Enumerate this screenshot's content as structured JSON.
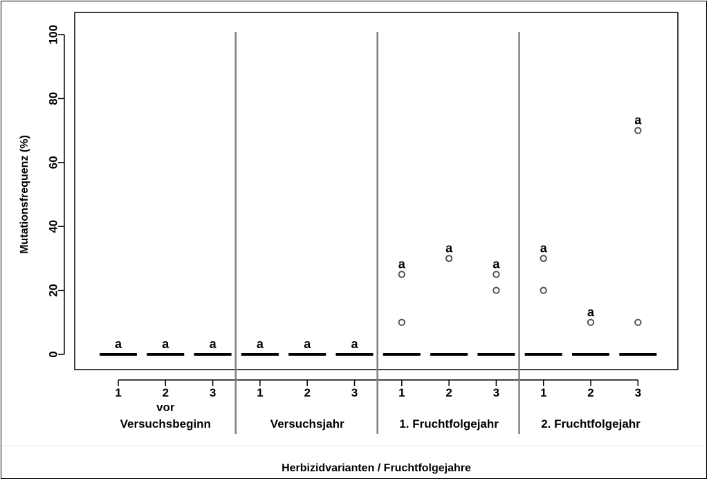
{
  "chart_data": {
    "type": "scatter",
    "ylabel": "Mutationsfrequenz (%)",
    "xlabel": "Herbizidvarianten / Fruchtfolgejahre",
    "ylim": [
      0,
      100
    ],
    "yticks": [
      "0",
      "20",
      "40",
      "60",
      "80",
      "100"
    ],
    "grid": false,
    "groups": [
      {
        "label_line1": "vor",
        "label_line2": "Versuchsbeginn",
        "variants": [
          {
            "label": "1",
            "median": 0,
            "outliers": [],
            "letter": "a"
          },
          {
            "label": "2",
            "median": 0,
            "outliers": [],
            "letter": "a"
          },
          {
            "label": "3",
            "median": 0,
            "outliers": [],
            "letter": "a"
          }
        ]
      },
      {
        "label_line1": "",
        "label_line2": "Versuchsjahr",
        "variants": [
          {
            "label": "1",
            "median": 0,
            "outliers": [],
            "letter": "a"
          },
          {
            "label": "2",
            "median": 0,
            "outliers": [],
            "letter": "a"
          },
          {
            "label": "3",
            "median": 0,
            "outliers": [],
            "letter": "a"
          }
        ]
      },
      {
        "label_line1": "",
        "label_line2": "1. Fruchtfolgejahr",
        "variants": [
          {
            "label": "1",
            "median": 0,
            "outliers": [
              10,
              25
            ],
            "letter": "a"
          },
          {
            "label": "2",
            "median": 0,
            "outliers": [
              30
            ],
            "letter": "a"
          },
          {
            "label": "3",
            "median": 0,
            "outliers": [
              20,
              25
            ],
            "letter": "a"
          }
        ]
      },
      {
        "label_line1": "",
        "label_line2": "2. Fruchtfolgejahr",
        "variants": [
          {
            "label": "1",
            "median": 0,
            "outliers": [
              20,
              30
            ],
            "letter": "a"
          },
          {
            "label": "2",
            "median": 0,
            "outliers": [
              10
            ],
            "letter": "a"
          },
          {
            "label": "3",
            "median": 0,
            "outliers": [
              10,
              70
            ],
            "letter": "a"
          }
        ]
      }
    ]
  }
}
